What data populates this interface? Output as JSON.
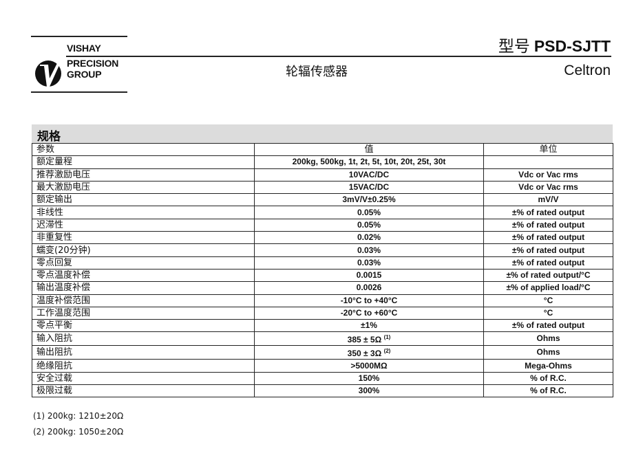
{
  "logo": {
    "line1": "VISHAY",
    "line2": "PRECISION",
    "line3": "GROUP"
  },
  "header": {
    "subtitle": "轮辐传感器",
    "model_label": "型号",
    "model": "PSD-SJTT",
    "brand": "Celtron"
  },
  "section_title": "规格",
  "table": {
    "columns": [
      "参数",
      "值",
      "单位"
    ],
    "rows": [
      {
        "param": "额定量程",
        "value": "200kg, 500kg, 1t, 2t, 5t, 10t, 20t, 25t, 30t",
        "unit": ""
      },
      {
        "param": "推荐激励电压",
        "value": "10VAC/DC",
        "unit": "Vdc or Vac rms"
      },
      {
        "param": "最大激励电压",
        "value": "15VAC/DC",
        "unit": "Vdc or Vac rms"
      },
      {
        "param": "额定输出",
        "value": "3mV/V±0.25%",
        "unit": "mV/V"
      },
      {
        "param": "非线性",
        "value": "0.05%",
        "unit": "±% of rated output"
      },
      {
        "param": "迟滞性",
        "value": "0.05%",
        "unit": "±% of rated output"
      },
      {
        "param": "非重复性",
        "value": "0.02%",
        "unit": "±% of rated output"
      },
      {
        "param": "蠕变(20分钟)",
        "value": "0.03%",
        "unit": "±% of rated output"
      },
      {
        "param": "零点回复",
        "value": "0.03%",
        "unit": "±% of rated output"
      },
      {
        "param": "零点温度补偿",
        "value": "0.0015",
        "unit": "±% of rated output/°C"
      },
      {
        "param": "输出温度补偿",
        "value": "0.0026",
        "unit": "±% of applied load/°C"
      },
      {
        "param": "温度补偿范围",
        "value": "-10°C to +40°C",
        "unit": "°C"
      },
      {
        "param": "工作温度范围",
        "value": "-20°C to +60°C",
        "unit": "°C"
      },
      {
        "param": "零点平衡",
        "value": "±1%",
        "unit": "±% of rated output"
      },
      {
        "param": "输入阻抗",
        "value": "385 ± 5Ω",
        "sup": "(1)",
        "unit": "Ohms"
      },
      {
        "param": "输出阻抗",
        "value": "350 ± 3Ω",
        "sup": "(2)",
        "unit": "Ohms"
      },
      {
        "param": "绝缘阻抗",
        "value": ">5000MΩ",
        "unit": "Mega-Ohms"
      },
      {
        "param": "安全过载",
        "value": "150%",
        "unit": "% of R.C."
      },
      {
        "param": "极限过载",
        "value": "300%",
        "unit": "% of R.C."
      }
    ]
  },
  "notes": [
    "(1)  200kg: 1210±20Ω",
    "(2)  200kg: 1050±20Ω"
  ]
}
